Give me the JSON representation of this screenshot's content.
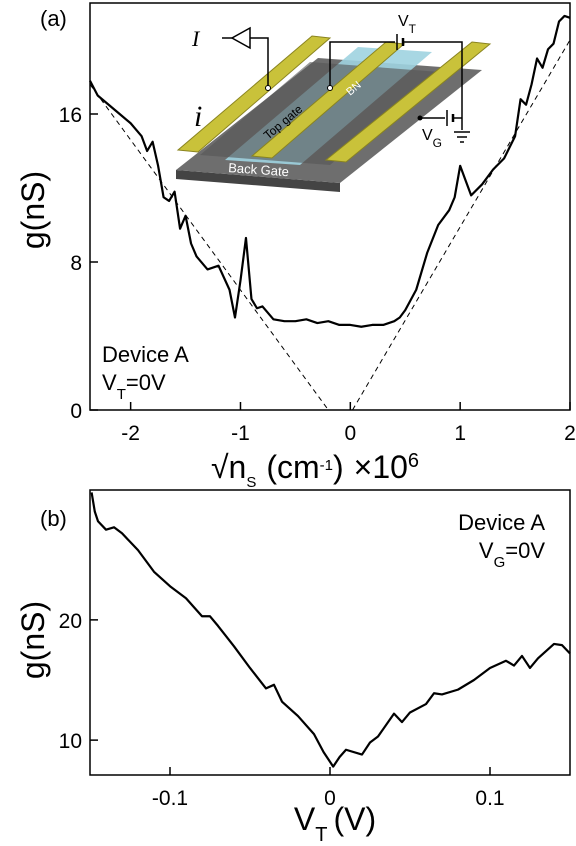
{
  "chart_data": [
    {
      "type": "line",
      "panel_label": "(a)",
      "ylabel": "g(nS)",
      "xlabel": [
        "√n",
        "S",
        "(cm",
        "-1",
        ")",
        "×10",
        "6"
      ],
      "annotations": [
        [
          "Device A"
        ],
        [
          "V",
          "T",
          "=0V"
        ]
      ],
      "xlim": [
        -2.37,
        2
      ],
      "ylim": [
        0,
        22
      ],
      "xticks": [
        -2,
        -1,
        0,
        1,
        2
      ],
      "yticks": [
        0,
        8,
        16
      ],
      "series": [
        {
          "color": "#000000",
          "dash": false,
          "x": [
            -2.37,
            -2.3,
            -2.2,
            -2.1,
            -2.0,
            -1.9,
            -1.85,
            -1.8,
            -1.75,
            -1.7,
            -1.65,
            -1.6,
            -1.55,
            -1.5,
            -1.45,
            -1.4,
            -1.3,
            -1.2,
            -1.1,
            -1.05,
            -1.0,
            -0.95,
            -0.9,
            -0.85,
            -0.8,
            -0.7,
            -0.6,
            -0.5,
            -0.4,
            -0.3,
            -0.2,
            -0.1,
            0.0,
            0.1,
            0.2,
            0.3,
            0.4,
            0.45,
            0.5,
            0.6,
            0.7,
            0.8,
            0.9,
            0.95,
            1.0,
            1.05,
            1.1,
            1.2,
            1.3,
            1.4,
            1.5,
            1.55,
            1.6,
            1.65,
            1.7,
            1.75,
            1.8,
            1.85,
            1.9,
            1.95,
            2.0
          ],
          "values": [
            17.8,
            17.0,
            16.5,
            16.0,
            15.5,
            14.8,
            14.0,
            14.5,
            13.2,
            11.5,
            11.3,
            11.8,
            9.8,
            10.5,
            9.0,
            8.3,
            7.6,
            7.8,
            6.5,
            5.0,
            7.0,
            9.3,
            6.0,
            5.5,
            5.6,
            4.9,
            4.8,
            4.8,
            4.9,
            4.7,
            4.8,
            4.6,
            4.6,
            4.5,
            4.6,
            4.6,
            4.8,
            5.0,
            5.4,
            6.5,
            8.5,
            10.0,
            10.8,
            11.5,
            13.2,
            12.4,
            11.6,
            12.2,
            13.0,
            13.6,
            14.8,
            16.8,
            16.5,
            17.6,
            19.0,
            18.5,
            19.5,
            19.8,
            21.0,
            21.3,
            21.2
          ]
        },
        {
          "color": "#000000",
          "dash": true,
          "x": [
            -2.37,
            -0.2
          ],
          "values": [
            17.6,
            0
          ]
        },
        {
          "color": "#000000",
          "dash": true,
          "x": [
            0.02,
            2
          ],
          "values": [
            0,
            20
          ]
        }
      ],
      "inset": {
        "current_source": "I",
        "current": "i",
        "top_gate_voltage": [
          "V",
          "T"
        ],
        "back_gate_voltage": [
          "V",
          "G"
        ],
        "top_gate": "Top gate",
        "dielectric": "BN",
        "back_gate": "Back Gate"
      }
    },
    {
      "type": "line",
      "panel_label": "(b)",
      "ylabel": "g(nS)",
      "xlabel": [
        "V",
        "T",
        "(V)"
      ],
      "annotations": [
        [
          "Device A"
        ],
        [
          "V",
          "G",
          "=0V"
        ]
      ],
      "xlim": [
        -0.15,
        0.15
      ],
      "ylim": [
        7.1,
        30.8
      ],
      "xticks": [
        -0.1,
        0,
        0.1
      ],
      "yticks": [
        10,
        20
      ],
      "series": [
        {
          "color": "#000000",
          "dash": false,
          "x": [
            -0.149,
            -0.147,
            -0.145,
            -0.14,
            -0.135,
            -0.13,
            -0.12,
            -0.11,
            -0.1,
            -0.09,
            -0.08,
            -0.075,
            -0.07,
            -0.06,
            -0.05,
            -0.04,
            -0.035,
            -0.03,
            -0.02,
            -0.01,
            -0.004,
            0.002,
            0.006,
            0.01,
            0.02,
            0.025,
            0.03,
            0.04,
            0.045,
            0.05,
            0.06,
            0.065,
            0.07,
            0.08,
            0.09,
            0.1,
            0.11,
            0.115,
            0.12,
            0.125,
            0.13,
            0.14,
            0.145,
            0.15
          ],
          "values": [
            30.6,
            29.0,
            28.2,
            27.5,
            27.7,
            27.2,
            25.8,
            24.0,
            22.8,
            21.8,
            20.3,
            20.3,
            19.5,
            17.8,
            16.0,
            14.3,
            14.6,
            13.2,
            12.0,
            10.5,
            9.0,
            7.8,
            8.6,
            9.2,
            8.8,
            9.8,
            10.3,
            12.2,
            11.5,
            12.3,
            13.0,
            13.9,
            13.8,
            14.2,
            15.0,
            16.0,
            16.6,
            16.2,
            17.0,
            16.0,
            16.8,
            18.0,
            17.9,
            17.2
          ]
        }
      ]
    }
  ]
}
